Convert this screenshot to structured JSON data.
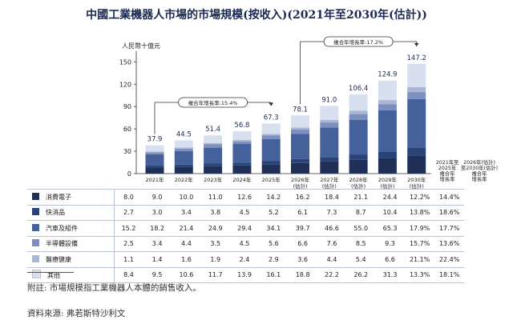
{
  "title": "中國工業機器人市場的市場規模(按收入)(2021年至2030年(估計))",
  "chart_data": {
    "type": "bar",
    "stacked": true,
    "ylabel": "人民幣十億元",
    "ylim": [
      0,
      160
    ],
    "yticks": [
      0,
      30,
      60,
      90,
      120,
      150
    ],
    "categories": [
      "2021年",
      "2022年",
      "2023年",
      "2024年",
      "2025年",
      "2026年\n(估計)",
      "2027年\n(估計)",
      "2028年\n(估計)",
      "2029年\n(估計)",
      "2030年\n(估計)"
    ],
    "totals": [
      37.9,
      44.5,
      51.4,
      56.8,
      67.3,
      78.1,
      91.0,
      106.4,
      124.9,
      147.2
    ],
    "totals_labels": [
      "37.9",
      "44.5",
      "51.4",
      "56.8",
      "67.3",
      "78.1",
      "91.0",
      "106.4",
      "124.9",
      "147.2"
    ],
    "series": [
      {
        "name": "消費電子",
        "color": "#1f2f57",
        "values": [
          8.0,
          9.0,
          10.0,
          11.0,
          12.6,
          14.2,
          16.2,
          18.4,
          21.1,
          24.4
        ],
        "labels": [
          "8.0",
          "9.0",
          "10.0",
          "11.0",
          "12.6",
          "14.2",
          "16.2",
          "18.4",
          "21.1",
          "24.4"
        ],
        "cagr1": "12.2%",
        "cagr2": "14.4%"
      },
      {
        "name": "快消品",
        "color": "#2a4377",
        "values": [
          2.7,
          3.0,
          3.4,
          3.8,
          4.5,
          5.2,
          6.1,
          7.3,
          8.7,
          10.4
        ],
        "labels": [
          "2.7",
          "3.0",
          "3.4",
          "3.8",
          "4.5",
          "5.2",
          "6.1",
          "7.3",
          "8.7",
          "10.4"
        ],
        "cagr1": "13.8%",
        "cagr2": "18.6%"
      },
      {
        "name": "汽車及組件",
        "color": "#45619c",
        "values": [
          15.2,
          18.2,
          21.4,
          24.9,
          29.4,
          34.1,
          39.7,
          46.6,
          55.0,
          65.3
        ],
        "labels": [
          "15.2",
          "18.2",
          "21.4",
          "24.9",
          "29.4",
          "34.1",
          "39.7",
          "46.6",
          "55.0",
          "65.3"
        ],
        "cagr1": "17.9%",
        "cagr2": "17.7%"
      },
      {
        "name": "半導體設備",
        "color": "#7c8fbd",
        "values": [
          2.5,
          3.4,
          4.4,
          3.5,
          4.5,
          5.6,
          6.6,
          7.6,
          8.5,
          9.3
        ],
        "labels": [
          "2.5",
          "3.4",
          "4.4",
          "3.5",
          "4.5",
          "5.6",
          "6.6",
          "7.6",
          "8.5",
          "9.3"
        ],
        "cagr1": "15.7%",
        "cagr2": "13.6%"
      },
      {
        "name": "醫療健康",
        "color": "#a9b6d6",
        "values": [
          1.1,
          1.4,
          1.6,
          1.9,
          2.4,
          2.9,
          3.6,
          4.4,
          5.4,
          6.6
        ],
        "labels": [
          "1.1",
          "1.4",
          "1.6",
          "1.9",
          "2.4",
          "2.9",
          "3.6",
          "4.4",
          "5.4",
          "6.6"
        ],
        "cagr1": "21.1%",
        "cagr2": "22.4%"
      },
      {
        "name": "其他",
        "color": "#d8dfee",
        "values": [
          8.4,
          9.5,
          10.6,
          11.7,
          13.9,
          16.1,
          18.8,
          22.2,
          26.2,
          31.3
        ],
        "labels": [
          "8.4",
          "9.5",
          "10.6",
          "11.7",
          "13.9",
          "16.1",
          "18.8",
          "22.2",
          "26.2",
          "31.3"
        ],
        "cagr1": "13.3%",
        "cagr2": "18.1%"
      }
    ],
    "cagr_header_1": "2021年至\n2025年\n複合年\n增長率",
    "cagr_header_2": "2026年(估計)\n至2030年(估計)\n複合年\n增長率",
    "annotations": [
      {
        "text": "複合年增長率:15.4%",
        "from": 0,
        "to": 4
      },
      {
        "text": "複合年增長率:17.2%",
        "from": 5,
        "to": 9
      }
    ]
  },
  "footnote": "附註:  市場規模指工業機器人本體的銷售收入。",
  "source": "資料來源:  弗若斯特沙利文"
}
